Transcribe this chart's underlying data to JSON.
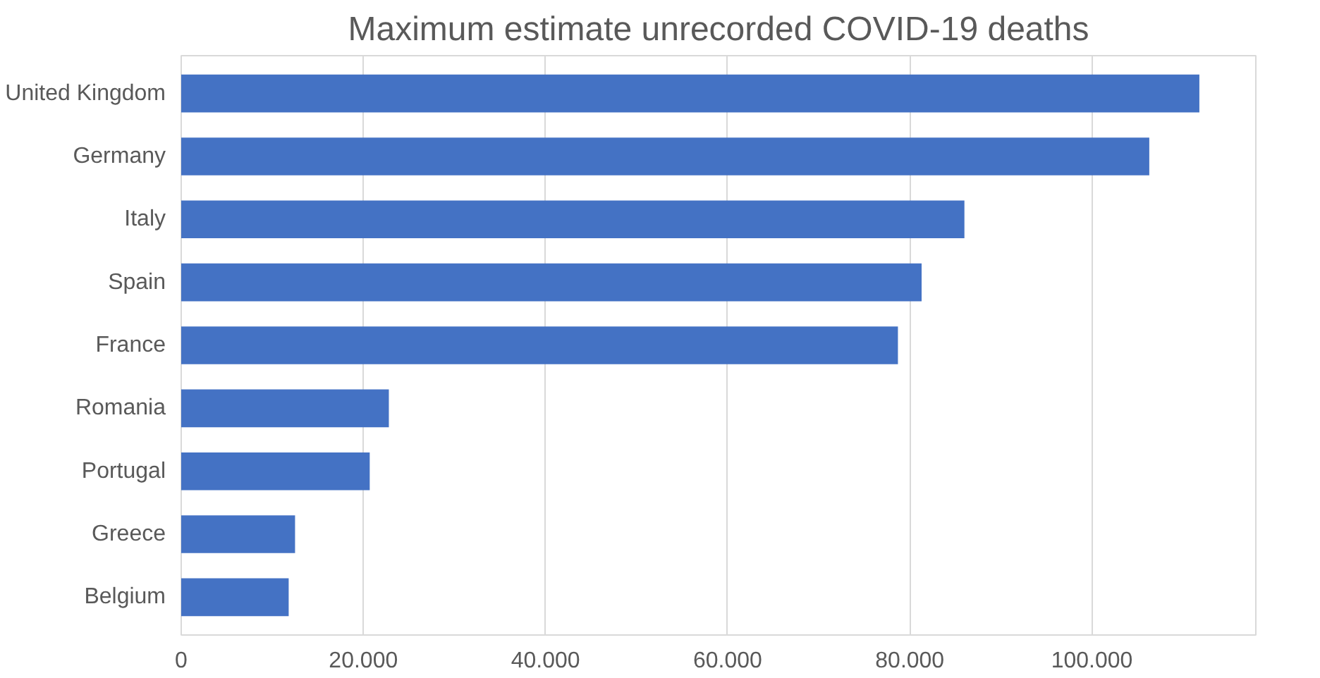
{
  "chart_data": {
    "type": "bar",
    "orientation": "horizontal",
    "title": "Maximum estimate unrecorded COVID-19 deaths",
    "categories": [
      "United Kingdom",
      "Germany",
      "Italy",
      "Spain",
      "France",
      "Romania",
      "Portugal",
      "Greece",
      "Belgium"
    ],
    "values": [
      111800,
      106300,
      86000,
      81300,
      78700,
      22800,
      20700,
      12500,
      11800
    ],
    "color": "#4472c4",
    "xlim": [
      0,
      118000
    ],
    "xticks": [
      {
        "value": 0,
        "label": "0"
      },
      {
        "value": 20000,
        "label": "20.000"
      },
      {
        "value": 40000,
        "label": "40.000"
      },
      {
        "value": 60000,
        "label": "60.000"
      },
      {
        "value": 80000,
        "label": "80.000"
      },
      {
        "value": 100000,
        "label": "100.000"
      }
    ],
    "grid": "x"
  }
}
